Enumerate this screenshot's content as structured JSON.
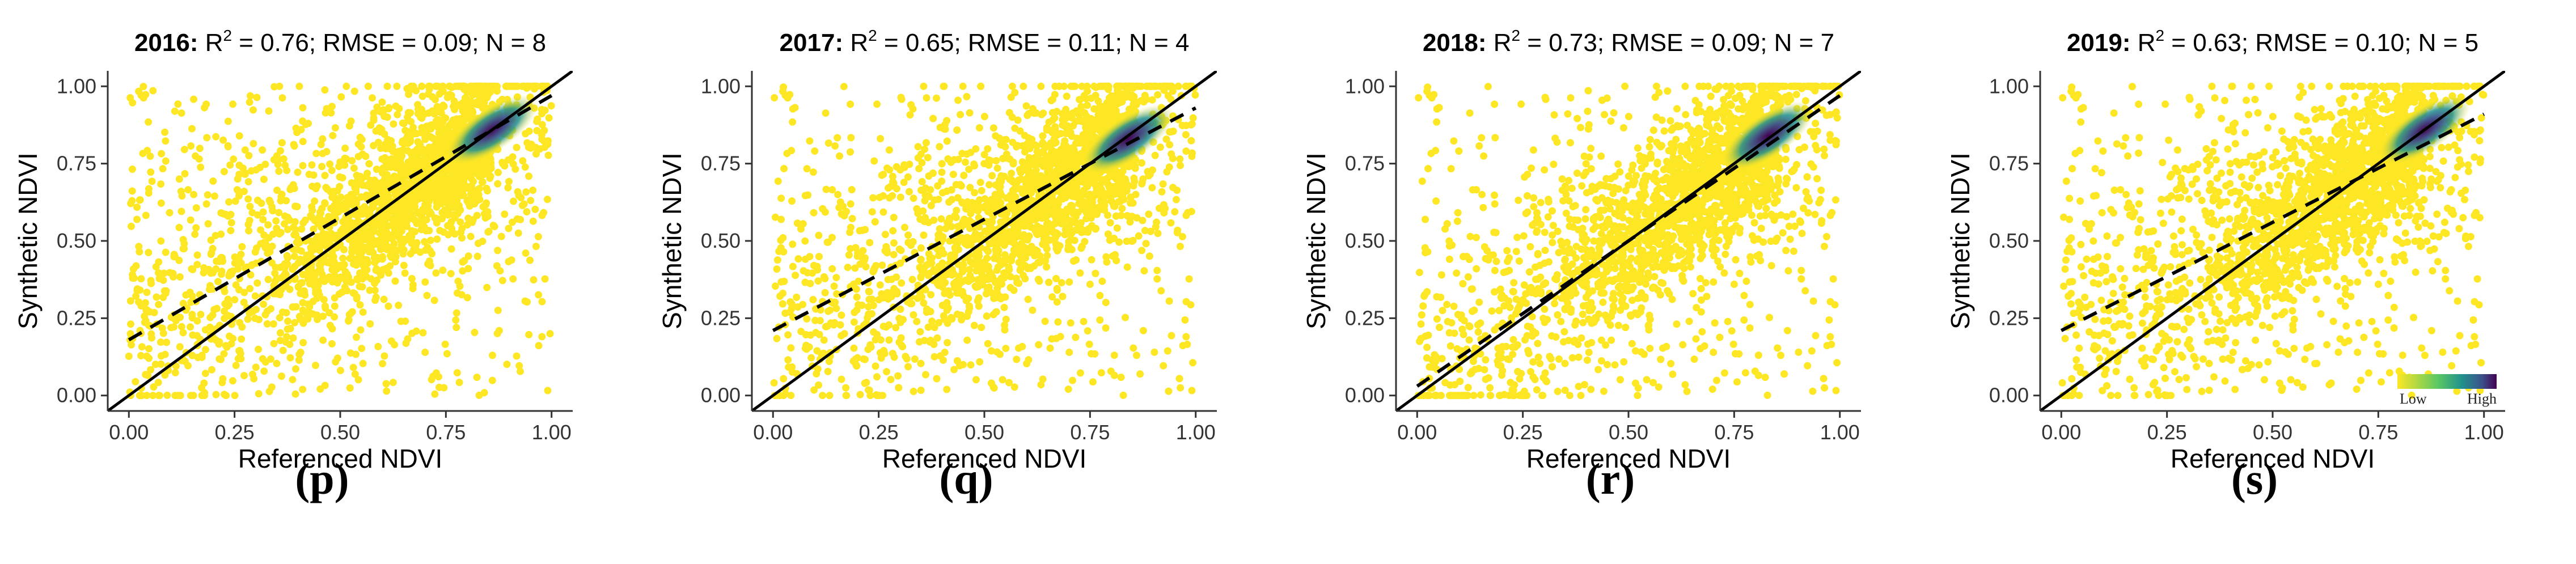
{
  "figure": {
    "panels": [
      {
        "caption": "(p)",
        "title_year": "2016:",
        "title_r": " R",
        "title_sup": "2",
        "title_rest": " = 0.76; RMSE = 0.09; N = 8"
      },
      {
        "caption": "(q)",
        "title_year": "2017:",
        "title_r": " R",
        "title_sup": "2",
        "title_rest": " = 0.65; RMSE = 0.11; N = 4"
      },
      {
        "caption": "(r)",
        "title_year": "2018:",
        "title_r": " R",
        "title_sup": "2",
        "title_rest": " = 0.73; RMSE = 0.09; N = 7"
      },
      {
        "caption": "(s)",
        "title_year": "2019:",
        "title_r": " R",
        "title_sup": "2",
        "title_rest": " = 0.63; RMSE = 0.10; N = 5"
      }
    ]
  },
  "colors": {
    "low": "#fde725",
    "mid": "#21918c",
    "high": "#440154",
    "point": "#fde725",
    "line": "#000000"
  },
  "chart_data": [
    {
      "type": "scatter",
      "density": true,
      "title": "2016: R2 = 0.76; RMSE = 0.09; N = 8",
      "xlabel": "Referenced NDVI",
      "ylabel": "Synthetic NDVI",
      "xlim": [
        -0.05,
        1.05
      ],
      "ylim": [
        -0.05,
        1.05
      ],
      "xticks": [
        "0.00",
        "0.25",
        "0.50",
        "0.75",
        "1.00"
      ],
      "yticks": [
        "0.00",
        "0.25",
        "0.50",
        "0.75",
        "1.00"
      ],
      "identity_line": {
        "x": [
          -0.05,
          1.05
        ],
        "y": [
          -0.05,
          1.05
        ]
      },
      "regression_line": {
        "x": [
          0.0,
          1.0
        ],
        "y": [
          0.18,
          0.97
        ]
      },
      "density_peak": {
        "x": 0.86,
        "y": 0.86
      },
      "legend": null
    },
    {
      "type": "scatter",
      "density": true,
      "title": "2017: R2 = 0.65; RMSE = 0.11; N = 4",
      "xlabel": "Referenced NDVI",
      "ylabel": "Synthetic NDVI",
      "xlim": [
        -0.05,
        1.05
      ],
      "ylim": [
        -0.05,
        1.05
      ],
      "xticks": [
        "0.00",
        "0.25",
        "0.50",
        "0.75",
        "1.00"
      ],
      "yticks": [
        "0.00",
        "0.25",
        "0.50",
        "0.75",
        "1.00"
      ],
      "identity_line": {
        "x": [
          -0.05,
          1.05
        ],
        "y": [
          -0.05,
          1.05
        ]
      },
      "regression_line": {
        "x": [
          0.0,
          1.0
        ],
        "y": [
          0.21,
          0.93
        ]
      },
      "density_peak": {
        "x": 0.84,
        "y": 0.83
      },
      "legend": null
    },
    {
      "type": "scatter",
      "density": true,
      "title": "2018: R2 = 0.73; RMSE = 0.09; N = 7",
      "xlabel": "Referenced NDVI",
      "ylabel": "Synthetic NDVI",
      "xlim": [
        -0.05,
        1.05
      ],
      "ylim": [
        -0.05,
        1.05
      ],
      "xticks": [
        "0.00",
        "0.25",
        "0.50",
        "0.75",
        "1.00"
      ],
      "yticks": [
        "0.00",
        "0.25",
        "0.50",
        "0.75",
        "1.00"
      ],
      "identity_line": {
        "x": [
          -0.05,
          1.05
        ],
        "y": [
          -0.05,
          1.05
        ]
      },
      "regression_line": {
        "x": [
          0.0,
          1.0
        ],
        "y": [
          0.03,
          0.97
        ]
      },
      "density_peak": {
        "x": 0.83,
        "y": 0.84
      },
      "legend": null
    },
    {
      "type": "scatter",
      "density": true,
      "title": "2019: R2 = 0.63; RMSE = 0.10; N = 5",
      "xlabel": "Referenced NDVI",
      "ylabel": "Synthetic NDVI",
      "xlim": [
        -0.05,
        1.05
      ],
      "ylim": [
        -0.05,
        1.05
      ],
      "xticks": [
        "0.00",
        "0.25",
        "0.50",
        "0.75",
        "1.00"
      ],
      "yticks": [
        "0.00",
        "0.25",
        "0.50",
        "0.75",
        "1.00"
      ],
      "identity_line": {
        "x": [
          -0.05,
          1.05
        ],
        "y": [
          -0.05,
          1.05
        ]
      },
      "regression_line": {
        "x": [
          0.0,
          1.0
        ],
        "y": [
          0.21,
          0.91
        ]
      },
      "density_peak": {
        "x": 0.86,
        "y": 0.86
      },
      "legend": {
        "low_label": "Low",
        "high_label": "High"
      }
    }
  ]
}
